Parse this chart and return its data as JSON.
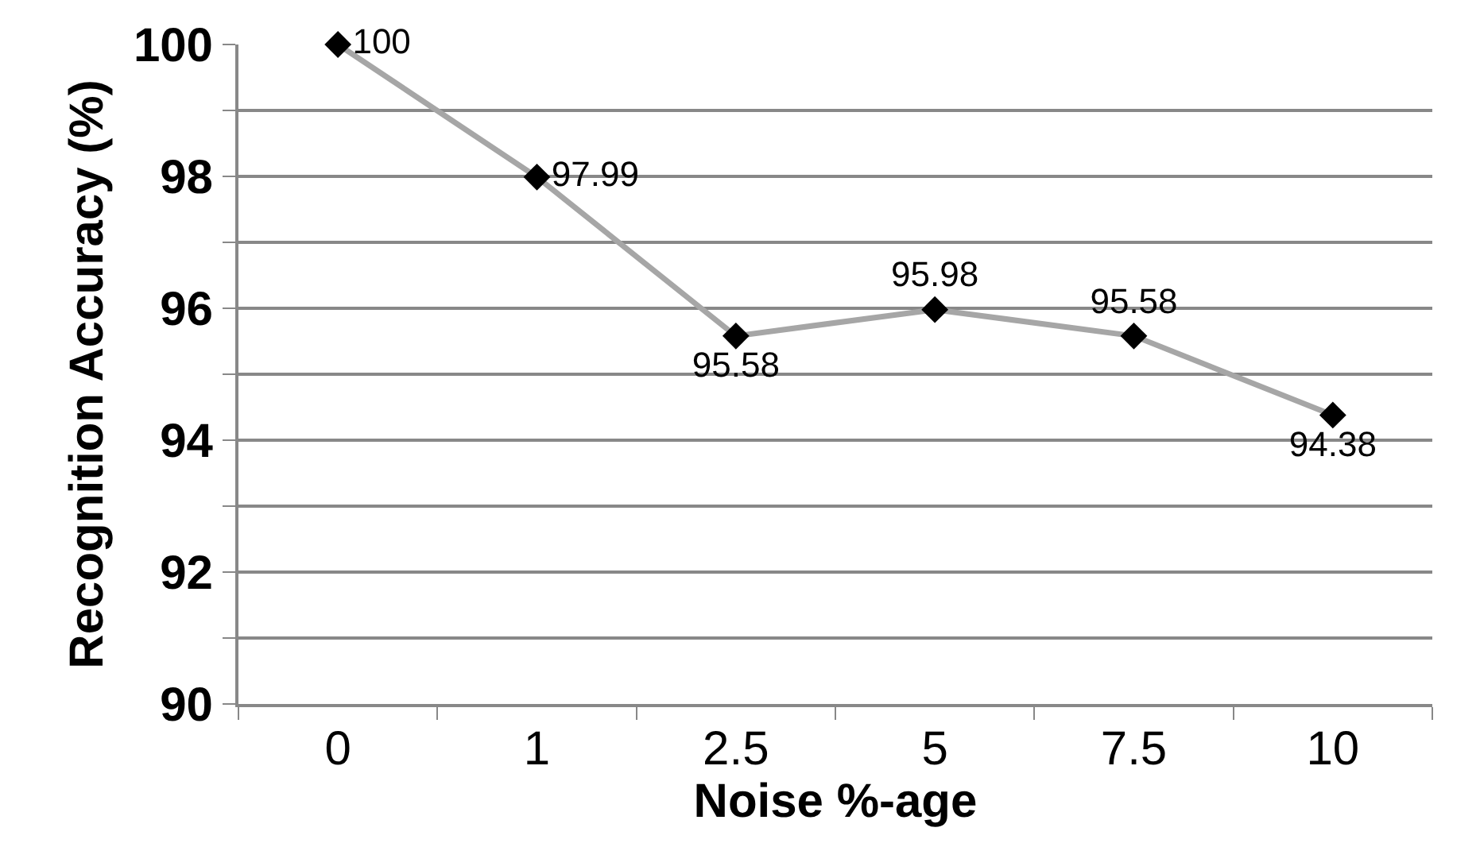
{
  "chart_data": {
    "type": "line",
    "xlabel": "Noise %-age",
    "ylabel": "Recognition Accuracy (%)",
    "categories": [
      "0",
      "1",
      "2.5",
      "5",
      "7.5",
      "10"
    ],
    "series": [
      {
        "color": "#a6a6a6",
        "values": [
          100,
          97.99,
          95.58,
          95.98,
          95.58,
          94.38
        ]
      }
    ],
    "ylim": [
      90,
      100
    ],
    "yticks": [
      90,
      {
        "value": 91,
        "label": null
      },
      92,
      {
        "value": 93,
        "label": null
      },
      94,
      {
        "value": 95,
        "label": null
      },
      96,
      {
        "value": 97,
        "label": null
      },
      98,
      {
        "value": 99,
        "label": null
      },
      100
    ],
    "grid": "y",
    "marker": "diamond",
    "line_style": "solid",
    "data_labels": true,
    "legend": false
  }
}
